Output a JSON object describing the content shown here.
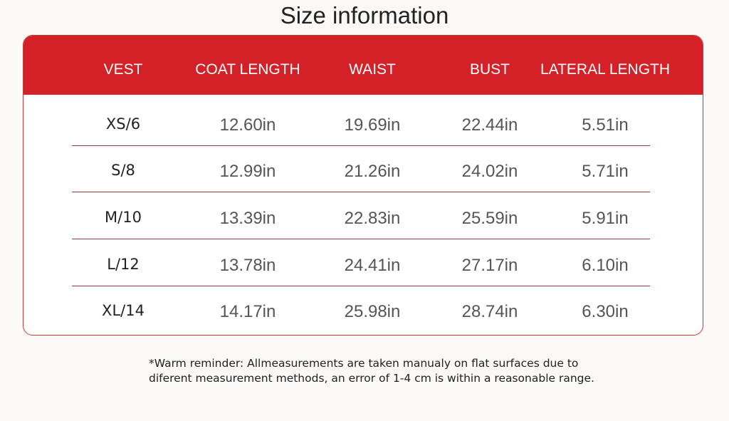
{
  "title": "Size information",
  "table": {
    "header": [
      "VEST",
      "COAT LENGTH",
      "WAIST",
      "BUST",
      "LATERAL LENGTH"
    ],
    "rows": [
      [
        "XS/6",
        "12.60in",
        "19.69in",
        "22.44in",
        "5.51in"
      ],
      [
        "S/8",
        "12.99in",
        "21.26in",
        "24.02in",
        "5.71in"
      ],
      [
        "M/10",
        "13.39in",
        "22.83in",
        "25.59in",
        "5.91in"
      ],
      [
        "L/12",
        "13.78in",
        "24.41in",
        "27.17in",
        "6.10in"
      ],
      [
        "XL/14",
        "14.17in",
        "25.98in",
        "28.74in",
        "6.30in"
      ]
    ]
  },
  "note": {
    "lines": [
      "*Warm reminder: Allmeasurements are taken manualy on flat surfaces due to",
      "diferent measurement methods, an error of 1-4 cm is within a reasonable range."
    ]
  }
}
